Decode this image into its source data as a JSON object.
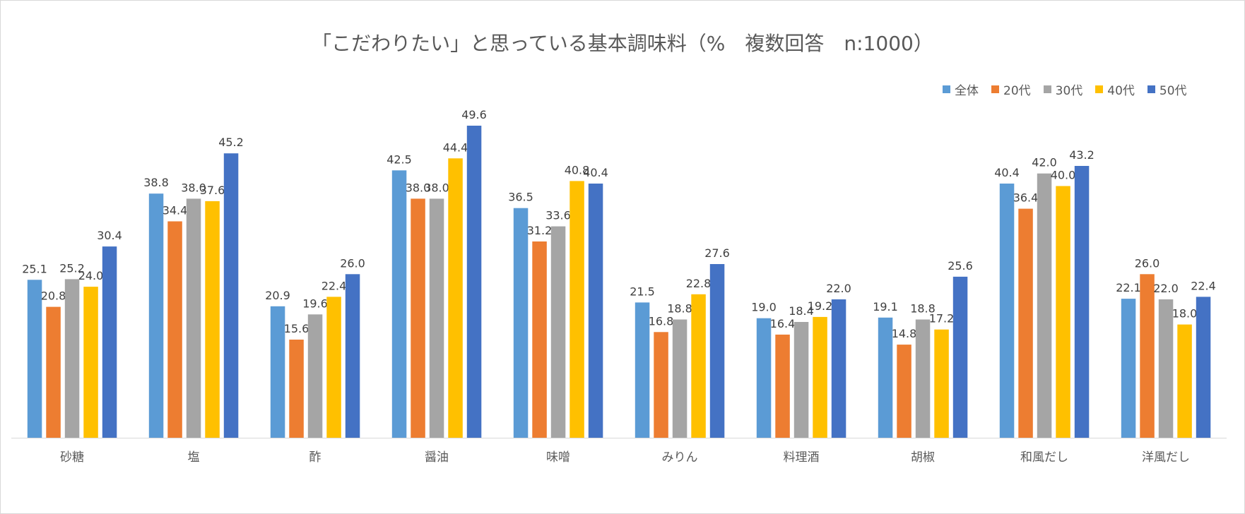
{
  "chart_data": {
    "type": "bar",
    "title": "「こだわりたい」と思っている基本調味料（%　複数回答　n:1000）",
    "categories": [
      "砂糖",
      "塩",
      "酢",
      "醤油",
      "味噌",
      "みりん",
      "料理酒",
      "胡椒",
      "和風だし",
      "洋風だし"
    ],
    "series": [
      {
        "name": "全体",
        "color": "#5b9bd5",
        "values": [
          25.1,
          38.8,
          20.9,
          42.5,
          36.5,
          21.5,
          19.0,
          19.1,
          40.4,
          22.1
        ]
      },
      {
        "name": "20代",
        "color": "#ed7d31",
        "values": [
          20.8,
          34.4,
          15.6,
          38.0,
          31.2,
          16.8,
          16.4,
          14.8,
          36.4,
          26.0
        ]
      },
      {
        "name": "30代",
        "color": "#a5a5a5",
        "values": [
          25.2,
          38.0,
          19.6,
          38.0,
          33.6,
          18.8,
          18.4,
          18.8,
          42.0,
          22.0
        ]
      },
      {
        "name": "40代",
        "color": "#ffc000",
        "values": [
          24.0,
          37.6,
          22.4,
          44.4,
          40.8,
          22.8,
          19.2,
          17.2,
          40.0,
          18.0
        ]
      },
      {
        "name": "50代",
        "color": "#4472c4",
        "values": [
          30.4,
          45.2,
          26.0,
          49.6,
          40.4,
          27.6,
          22.0,
          25.6,
          43.2,
          22.4
        ]
      }
    ],
    "ylim": [
      0,
      49.6
    ],
    "legend_position": "top-right",
    "grid": false
  }
}
